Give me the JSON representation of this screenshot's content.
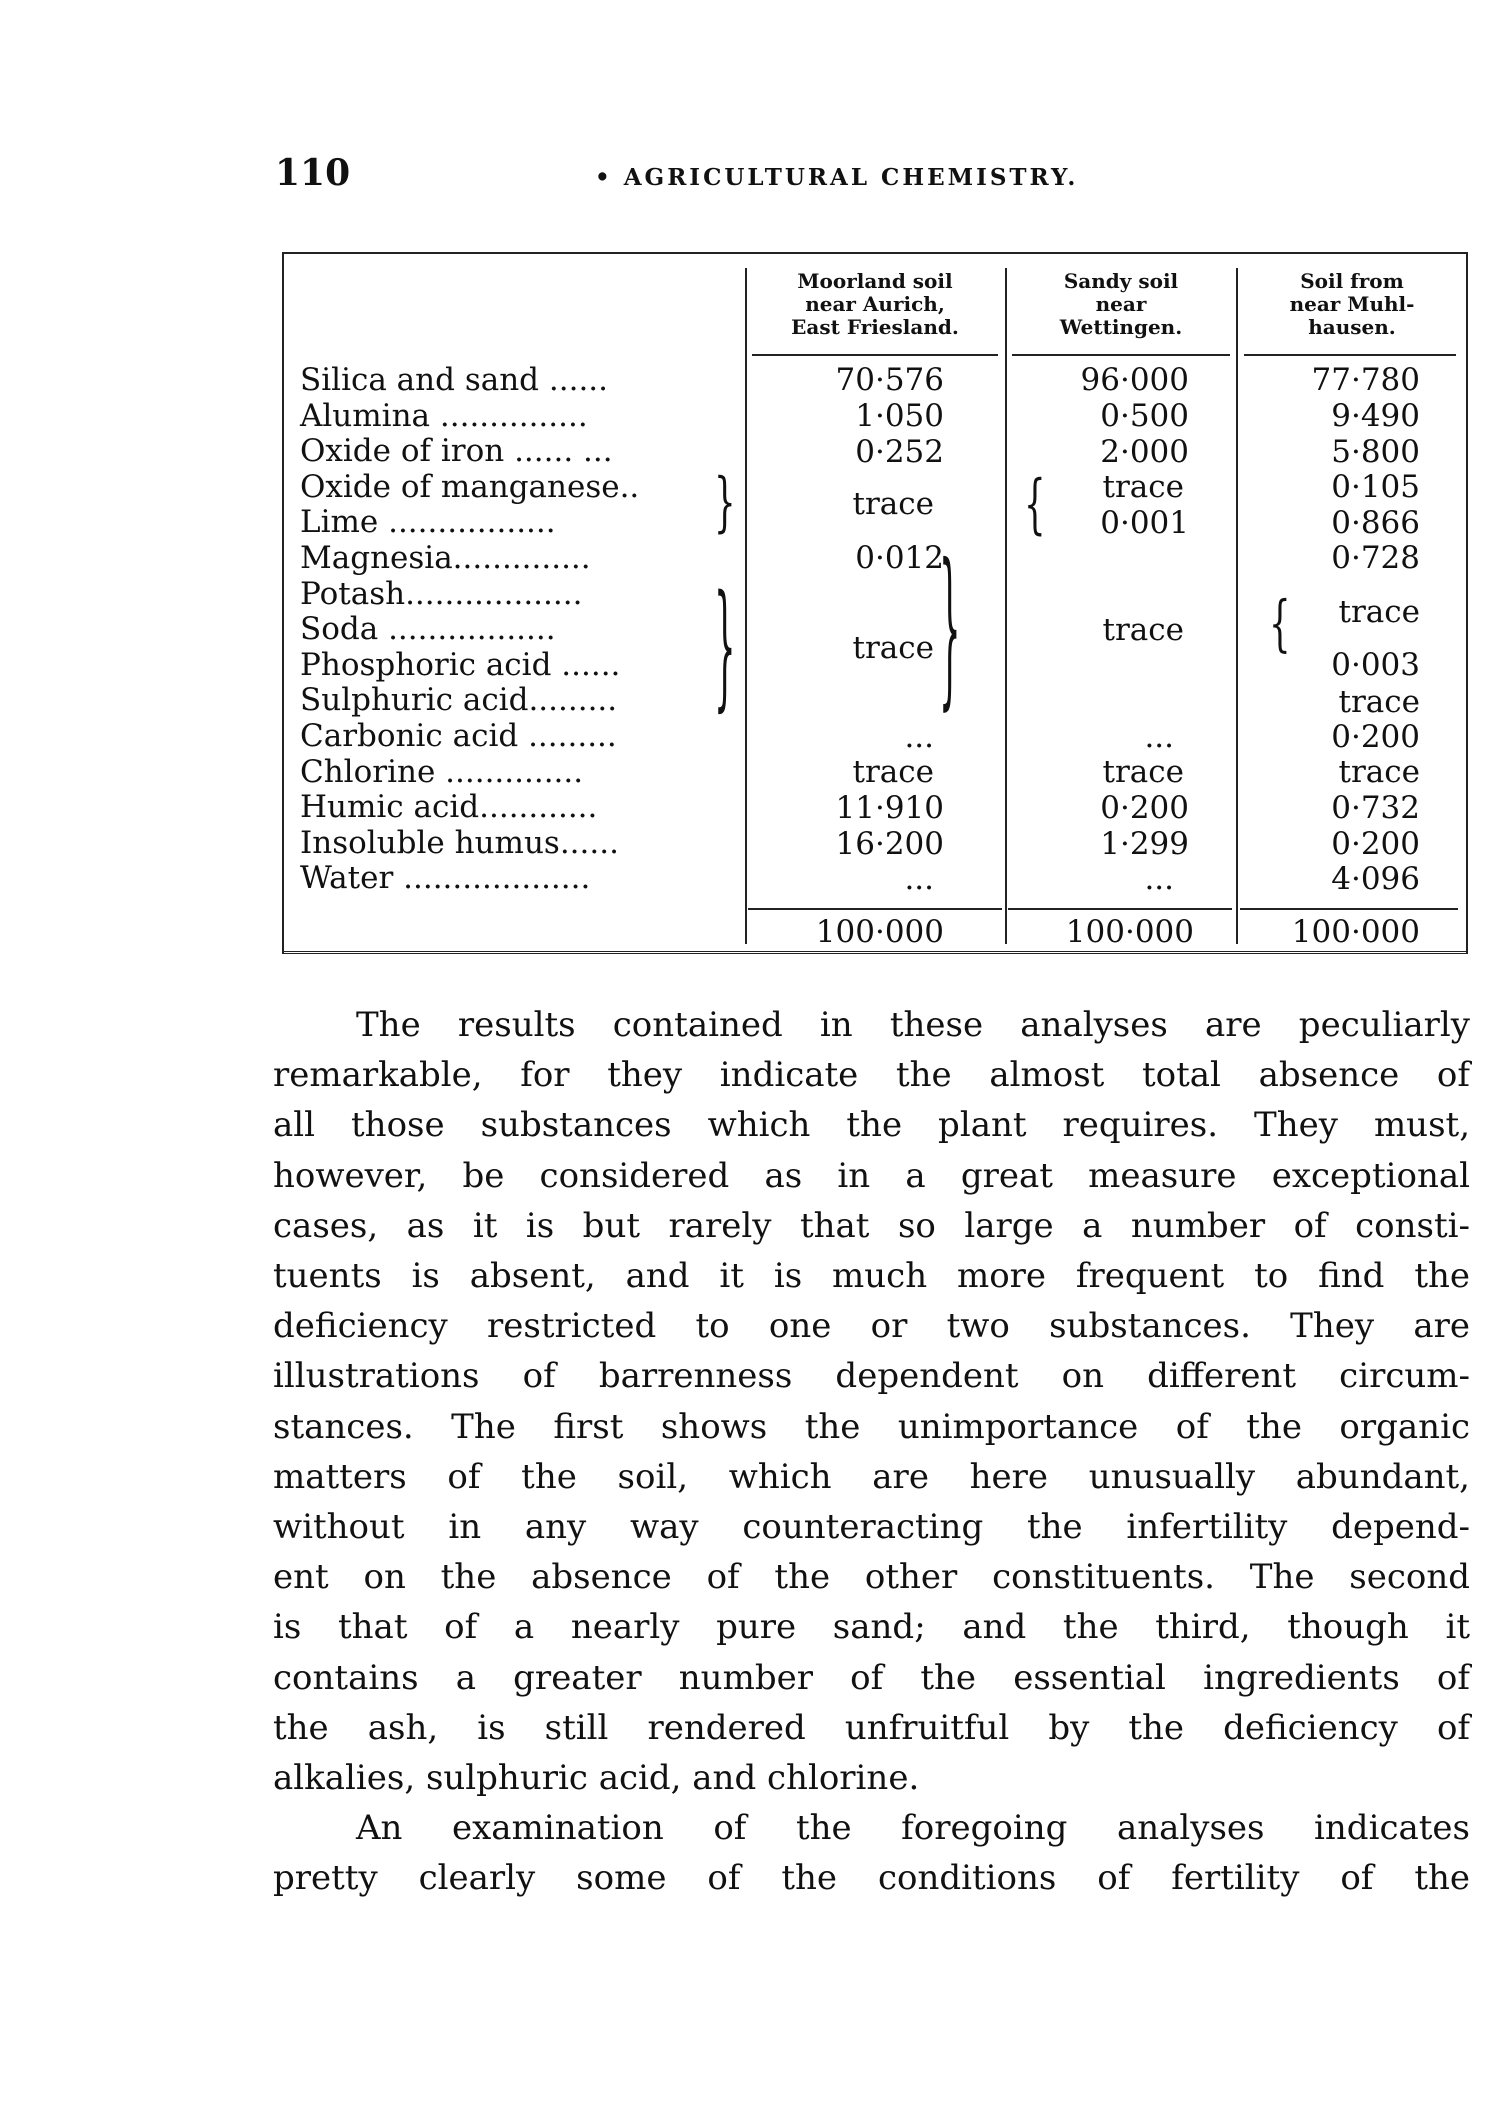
{
  "header": {
    "page_number": "110",
    "running_title": "• AGRICULTURAL CHEMISTRY."
  },
  "table": {
    "columns": [
      [
        "Moorland soil",
        "near Aurich,",
        "East Friesland."
      ],
      [
        "Sandy soil",
        "near",
        "Wettingen."
      ],
      [
        "Soil from",
        "near Muhl-",
        "hausen."
      ]
    ],
    "rows": [
      "Silica and sand ......",
      "Alumina ...............",
      "Oxide of iron ...... ...",
      "Oxide of manganese..",
      "Lime  .................",
      "Magnesia..............",
      "Potash..................",
      "Soda  .................",
      "Phosphoric acid ......",
      "Sulphuric acid.........",
      "Carbonic acid .........",
      "Chlorine ..............",
      "Humic acid............",
      "Insoluble humus......",
      "Water ..................."
    ],
    "col1": {
      "silica": "70·576",
      "alumina": "1·050",
      "iron": "0·252",
      "mn_lime": "trace",
      "magnesia": "0·012",
      "potash_to_sulphuric": "trace",
      "carbonic": "...",
      "chlorine": "trace",
      "humic": "11·910",
      "insoluble": "16·200",
      "water": "...",
      "total": "100·000"
    },
    "col2": {
      "silica": "96·000",
      "alumina": "0·500",
      "iron": "2·000",
      "manganese": "trace",
      "lime": "0·001",
      "magnesia_to_sulphuric": "trace",
      "carbonic": "...",
      "chlorine": "trace",
      "humic": "0·200",
      "insoluble": "1·299",
      "water": "...",
      "total": "100·000"
    },
    "col3": {
      "silica": "77·780",
      "alumina": "9·490",
      "iron": "5·800",
      "manganese": "0·105",
      "lime": "0·866",
      "magnesia": "0·728",
      "potash_soda": "trace",
      "phosphoric": "0·003",
      "sulphuric": "trace",
      "carbonic": "0·200",
      "chlorine": "trace",
      "humic": "0·732",
      "insoluble": "0·200",
      "water": "4·096",
      "total": "100·000"
    }
  },
  "body": {
    "p1": [
      "The results contained in these analyses are peculiarly",
      "remarkable, for they indicate the almost total absence of",
      "all those substances which the plant requires.  They must,",
      "however, be considered as in a great measure exceptional",
      "cases, as it is but rarely that so large a number of consti-",
      "tuents is absent, and it is much more frequent to find the",
      "deficiency restricted to one or two substances.  They are",
      "illustrations of barrenness dependent on different circum-",
      "stances.  The first shows the unimportance of the organic",
      "matters of the soil, which are here unusually abundant,",
      "without in any way counteracting the infertility depend-",
      "ent on the absence of the other constituents.  The second",
      "is that of a nearly pure sand; and the third, though it",
      "contains a greater number of the essential ingredients of",
      "the ash, is still rendered unfruitful by the deficiency of",
      "alkalies, sulphuric acid, and chlorine."
    ],
    "p2": [
      "An examination of the foregoing analyses indicates",
      "pretty clearly some of the conditions of fertility of the"
    ]
  }
}
